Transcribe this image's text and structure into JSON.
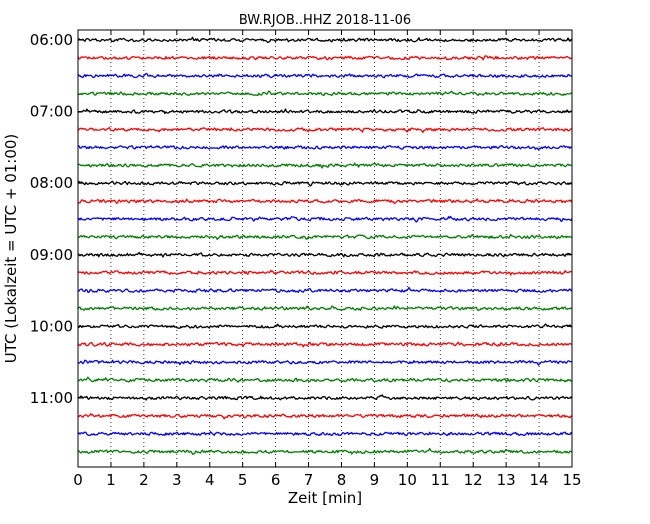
{
  "chart_data": {
    "type": "line",
    "title": "BW.RJOB..HHZ 2018-11-06",
    "xlabel": "Zeit  [min]",
    "ylabel": "UTC (Lokalzeit = UTC + 01:00)",
    "xlim": [
      0,
      15
    ],
    "x_ticks": [
      "0",
      "1",
      "2",
      "3",
      "4",
      "5",
      "6",
      "7",
      "8",
      "9",
      "10",
      "11",
      "12",
      "13",
      "14",
      "15"
    ],
    "y_tick_labels": [
      "06:00",
      "07:00",
      "08:00",
      "09:00",
      "10:00",
      "11:00"
    ],
    "grid": "vertical dotted lines at each minute",
    "color_cycle": [
      "#000000",
      "#ff0000",
      "#0000ff",
      "#007f00"
    ],
    "traces": [
      {
        "start": "06:00",
        "color": "#000000"
      },
      {
        "start": "06:15",
        "color": "#ff0000"
      },
      {
        "start": "06:30",
        "color": "#0000ff"
      },
      {
        "start": "06:45",
        "color": "#007f00"
      },
      {
        "start": "07:00",
        "color": "#000000"
      },
      {
        "start": "07:15",
        "color": "#ff0000"
      },
      {
        "start": "07:30",
        "color": "#0000ff"
      },
      {
        "start": "07:45",
        "color": "#007f00"
      },
      {
        "start": "08:00",
        "color": "#000000"
      },
      {
        "start": "08:15",
        "color": "#ff0000"
      },
      {
        "start": "08:30",
        "color": "#0000ff"
      },
      {
        "start": "08:45",
        "color": "#007f00"
      },
      {
        "start": "09:00",
        "color": "#000000"
      },
      {
        "start": "09:15",
        "color": "#ff0000"
      },
      {
        "start": "09:30",
        "color": "#0000ff"
      },
      {
        "start": "09:45",
        "color": "#007f00"
      },
      {
        "start": "10:00",
        "color": "#000000"
      },
      {
        "start": "10:15",
        "color": "#ff0000"
      },
      {
        "start": "10:30",
        "color": "#0000ff"
      },
      {
        "start": "10:45",
        "color": "#007f00"
      },
      {
        "start": "11:00",
        "color": "#000000"
      },
      {
        "start": "11:15",
        "color": "#ff0000"
      },
      {
        "start": "11:30",
        "color": "#0000ff"
      },
      {
        "start": "11:45",
        "color": "#007f00"
      }
    ]
  }
}
